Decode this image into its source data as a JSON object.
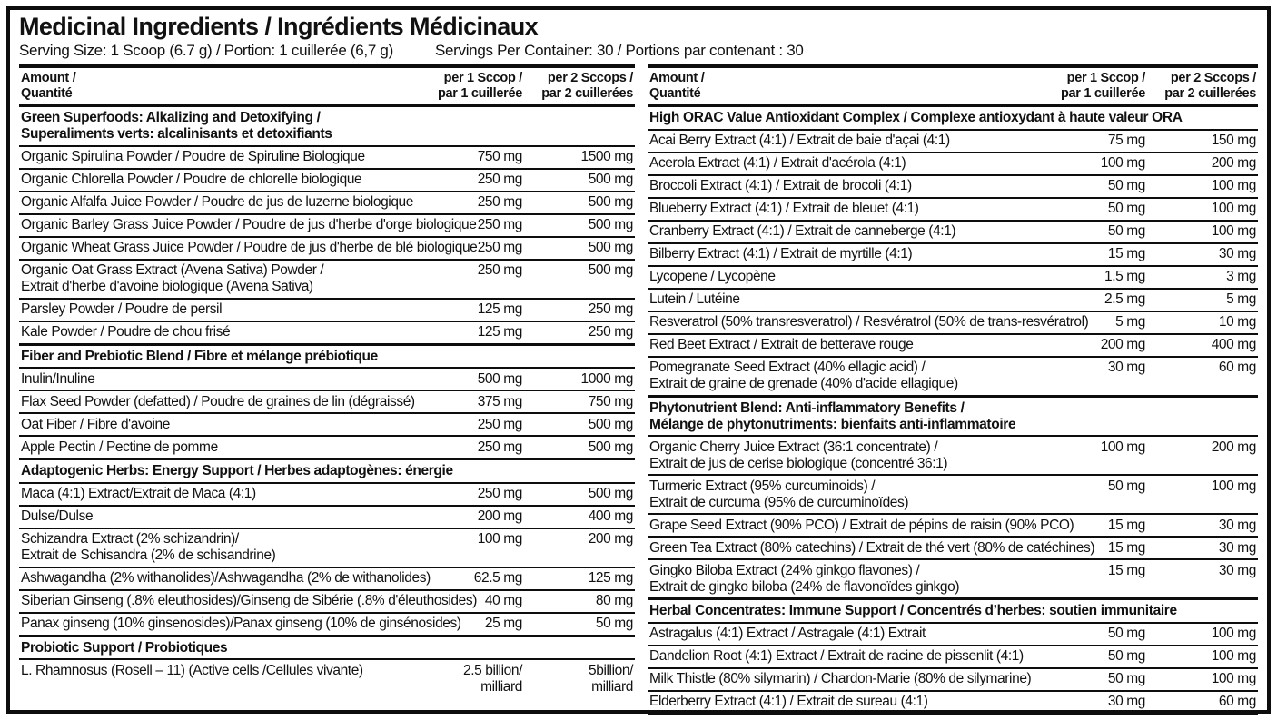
{
  "title": "Medicinal Ingredients / Ingrédients Médicinaux",
  "serving": {
    "size": "Serving Size: 1 Scoop (6.7 g) / Portion: 1 cuillerée (6,7 g)",
    "per_container": "Servings Per Container: 30 / Portions par contenant : 30"
  },
  "columns_header": {
    "amount": "Amount /",
    "amount2": "Quantité",
    "scoop1": "per 1 Sccop /",
    "scoop1b": "par 1 cuillerée",
    "scoop2": "per 2 Sccops /",
    "scoop2b": "par 2 cuillerées"
  },
  "left": {
    "sections": [
      {
        "title": "Green Superfoods: Alkalizing and Detoxifying /",
        "title2": "Superaliments verts: alcalinisants et detoxifiants",
        "rows": [
          {
            "name": "Organic Spirulina Powder / Poudre de Spiruline Biologique",
            "v1": "750 mg",
            "v2": "1500 mg"
          },
          {
            "name": "Organic Chlorella Powder / Poudre de chlorelle biologique",
            "v1": "250 mg",
            "v2": "500 mg"
          },
          {
            "name": "Organic Alfalfa Juice Powder / Poudre de jus de luzerne biologique",
            "v1": "250 mg",
            "v2": "500 mg"
          },
          {
            "name": "Organic Barley Grass Juice Powder / Poudre de jus d'herbe d'orge biologique",
            "v1": "250 mg",
            "v2": "500 mg"
          },
          {
            "name": "Organic Wheat Grass Juice Powder / Poudre de jus d'herbe de blé biologique",
            "v1": "250 mg",
            "v2": "500 mg"
          },
          {
            "name": "Organic Oat Grass Extract (Avena Sativa) Powder /",
            "name2": "Extrait d'herbe d'avoine biologique (Avena Sativa)",
            "v1": "250 mg",
            "v2": "500 mg"
          },
          {
            "name": "Parsley Powder / Poudre de persil",
            "v1": "125 mg",
            "v2": "250 mg"
          },
          {
            "name": "Kale Powder / Poudre de chou frisé",
            "v1": "125 mg",
            "v2": "250 mg"
          }
        ]
      },
      {
        "title": "Fiber and Prebiotic Blend / Fibre et mélange prébiotique",
        "rows": [
          {
            "name": "Inulin/Inuline",
            "v1": "500 mg",
            "v2": "1000 mg"
          },
          {
            "name": "Flax Seed Powder (defatted) / Poudre de graines de lin (dégraissé)",
            "v1": "375 mg",
            "v2": "750 mg"
          },
          {
            "name": "Oat Fiber / Fibre d'avoine",
            "v1": "250 mg",
            "v2": "500 mg"
          },
          {
            "name": "Apple Pectin / Pectine de pomme",
            "v1": "250 mg",
            "v2": "500 mg"
          }
        ]
      },
      {
        "title": "Adaptogenic Herbs: Energy Support / Herbes adaptogènes: énergie",
        "rows": [
          {
            "name": "Maca (4:1) Extract/Extrait de Maca (4:1)",
            "v1": "250 mg",
            "v2": "500 mg"
          },
          {
            "name": "Dulse/Dulse",
            "v1": "200 mg",
            "v2": "400 mg"
          },
          {
            "name": "Schizandra Extract (2% schizandrin)/",
            "name2": "Extrait de Schisandra (2% de schisandrine)",
            "v1": "100 mg",
            "v2": "200 mg"
          },
          {
            "name": "Ashwagandha (2% withanolides)/Ashwagandha (2% de withanolides)",
            "v1": "62.5 mg",
            "v2": "125 mg"
          },
          {
            "name": "Siberian Ginseng (.8% eleuthosides)/Ginseng de Sibérie (.8% d'éleuthosides)",
            "v1": "40 mg",
            "v2": "80 mg"
          },
          {
            "name": "Panax ginseng (10% ginsenosides)/Panax ginseng (10% de ginsénosides)",
            "v1": "25 mg",
            "v2": "50 mg"
          }
        ]
      },
      {
        "title": "Probiotic Support / Probiotiques",
        "rows": [
          {
            "name": "L. Rhamnosus (Rosell – 11) (Active cells /Cellules vivante)",
            "v1": "2.5 billion/",
            "v1b": "milliard",
            "v2": "5billion/",
            "v2b": "milliard"
          }
        ]
      }
    ]
  },
  "right": {
    "sections": [
      {
        "title": "High ORAC Value Antioxidant Complex / Complexe antioxydant à haute valeur ORA",
        "rows": [
          {
            "name": "Acai Berry Extract (4:1) / Extrait de baie d'açai (4:1)",
            "v1": "75 mg",
            "v2": "150 mg"
          },
          {
            "name": "Acerola Extract (4:1) / Extrait d'acérola (4:1)",
            "v1": "100 mg",
            "v2": "200 mg"
          },
          {
            "name": "Broccoli Extract (4:1) / Extrait de brocoli (4:1)",
            "v1": "50 mg",
            "v2": "100 mg"
          },
          {
            "name": "Blueberry Extract (4:1) / Extrait de bleuet (4:1)",
            "v1": "50 mg",
            "v2": "100 mg"
          },
          {
            "name": "Cranberry Extract (4:1) / Extrait de canneberge (4:1)",
            "v1": "50 mg",
            "v2": "100 mg"
          },
          {
            "name": "Bilberry Extract (4:1) / Extrait de myrtille (4:1)",
            "v1": "15 mg",
            "v2": "30 mg"
          },
          {
            "name": "Lycopene / Lycopène",
            "v1": "1.5 mg",
            "v2": "3 mg"
          },
          {
            "name": "Lutein / Lutéine",
            "v1": "2.5 mg",
            "v2": "5 mg"
          },
          {
            "name": "Resveratrol (50% transresveratrol) / Resvératrol (50% de trans-resvératrol)",
            "v1": "5 mg",
            "v2": "10 mg"
          },
          {
            "name": "Red Beet Extract / Extrait de betterave rouge",
            "v1": "200 mg",
            "v2": "400 mg"
          },
          {
            "name": "Pomegranate Seed Extract (40% ellagic acid) /",
            "name2": "Extrait de graine de grenade (40% d'acide ellagique)",
            "v1": "30 mg",
            "v2": "60 mg"
          }
        ]
      },
      {
        "title": "Phytonutrient Blend: Anti-inflammatory Benefits /",
        "title2": "Mélange de phytonutriments: bienfaits anti-inflammatoire",
        "rows": [
          {
            "name": "Organic Cherry Juice Extract (36:1 concentrate) /",
            "name2": "Extrait de jus de cerise biologique (concentré 36:1)",
            "v1": "100 mg",
            "v2": "200 mg"
          },
          {
            "name": "Turmeric Extract (95% curcuminoids) /",
            "name2": "Extrait de curcuma (95% de curcuminoïdes)",
            "v1": "50 mg",
            "v2": "100 mg"
          },
          {
            "name": "Grape Seed Extract (90% PCO) / Extrait de pépins de raisin (90% PCO)",
            "v1": "15 mg",
            "v2": "30 mg"
          },
          {
            "name": "Green Tea Extract (80% catechins) / Extrait de thé vert (80% de catéchines)",
            "v1": "15 mg",
            "v2": "30 mg"
          },
          {
            "name": "Gingko Biloba Extract (24% ginkgo flavones) /",
            "name2": "Extrait de gingko biloba (24% de flavonoïdes ginkgo)",
            "v1": "15 mg",
            "v2": "30 mg"
          }
        ]
      },
      {
        "title": "Herbal Concentrates: Immune Support / Concentrés d’herbes: soutien immunitaire",
        "rows": [
          {
            "name": "Astragalus (4:1) Extract / Astragale (4:1) Extrait",
            "v1": "50 mg",
            "v2": "100 mg"
          },
          {
            "name": "Dandelion Root (4:1) Extract / Extrait de racine de pissenlit (4:1)",
            "v1": "50 mg",
            "v2": "100 mg"
          },
          {
            "name": "Milk Thistle (80% silymarin) / Chardon-Marie (80% de silymarine)",
            "v1": "50 mg",
            "v2": "100 mg"
          },
          {
            "name": "Elderberry Extract (4:1) / Extrait de sureau (4:1)",
            "v1": "30 mg",
            "v2": "60 mg"
          }
        ]
      }
    ]
  }
}
